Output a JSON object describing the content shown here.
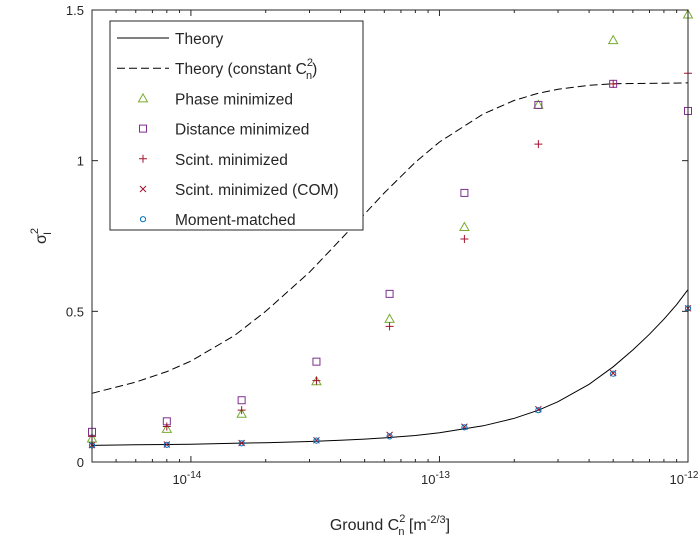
{
  "chart_data": {
    "type": "scatter",
    "x_scale": "log",
    "xlim": [
      4e-15,
      1e-12
    ],
    "ylim": [
      0,
      1.5
    ],
    "grid": false,
    "legend_placement": "top-left",
    "xlabel": {
      "base": "Ground C",
      "sup": "2",
      "sub": "n",
      "unit": "[m",
      "unit_exp": "-2/3",
      "unit_close": "]"
    },
    "ylabel": {
      "base": "σ",
      "sup": "2",
      "sub": "I"
    },
    "y_ticks": [
      {
        "value": 0,
        "label": "0"
      },
      {
        "value": 0.5,
        "label": "0.5"
      },
      {
        "value": 1,
        "label": "1"
      },
      {
        "value": 1.5,
        "label": "1.5"
      }
    ],
    "x_ticks": [
      {
        "value": 1e-14,
        "base": "10",
        "exp": "-14"
      },
      {
        "value": 1e-13,
        "base": "10",
        "exp": "-13"
      },
      {
        "value": 1e-12,
        "base": "10",
        "exp": "-12"
      }
    ],
    "series": [
      {
        "name": "Theory",
        "kind": "line",
        "dash": "solid",
        "color": "#000000",
        "x": [
          4e-15,
          6e-15,
          8e-15,
          1e-14,
          1.5e-14,
          2e-14,
          3e-14,
          4e-14,
          5e-14,
          6e-14,
          8e-14,
          1e-13,
          1.5e-13,
          2e-13,
          2.5e-13,
          3e-13,
          4e-13,
          5e-13,
          6e-13,
          7e-13,
          8e-13,
          9e-13,
          1e-12
        ],
        "y": [
          0.055,
          0.057,
          0.058,
          0.059,
          0.062,
          0.064,
          0.068,
          0.072,
          0.076,
          0.08,
          0.088,
          0.097,
          0.12,
          0.145,
          0.172,
          0.2,
          0.258,
          0.316,
          0.372,
          0.424,
          0.474,
          0.522,
          0.572
        ]
      },
      {
        "name": "Theory (constant C_n^2)",
        "kind": "line",
        "dash": "dashed",
        "color": "#000000",
        "x": [
          4e-15,
          6e-15,
          8e-15,
          1e-14,
          1.5e-14,
          2e-14,
          3e-14,
          4e-14,
          5e-14,
          6e-14,
          8e-14,
          1e-13,
          1.5e-13,
          2e-13,
          2.5e-13,
          3e-13,
          4e-13,
          5e-13,
          6e-13,
          8e-13,
          1e-12
        ],
        "y": [
          0.228,
          0.265,
          0.3,
          0.335,
          0.42,
          0.5,
          0.63,
          0.738,
          0.823,
          0.893,
          0.995,
          1.062,
          1.155,
          1.2,
          1.224,
          1.237,
          1.25,
          1.255,
          1.256,
          1.257,
          1.258
        ]
      },
      {
        "name": "Phase minimized",
        "kind": "marker",
        "marker": "triangle",
        "color": "#77AC30",
        "x": [
          4e-15,
          8e-15,
          1.6e-14,
          3.2e-14,
          6.3e-14,
          1.26e-13,
          2.5e-13,
          5e-13,
          1e-12
        ],
        "y": [
          0.078,
          0.11,
          0.16,
          0.268,
          0.475,
          0.78,
          1.185,
          1.4,
          1.485
        ]
      },
      {
        "name": "Distance minimized",
        "kind": "marker",
        "marker": "square",
        "color": "#7E2F8E",
        "x": [
          4e-15,
          8e-15,
          1.6e-14,
          3.2e-14,
          6.3e-14,
          1.26e-13,
          2.5e-13,
          5e-13,
          1e-12
        ],
        "y": [
          0.1,
          0.135,
          0.205,
          0.333,
          0.558,
          0.893,
          1.185,
          1.255,
          1.165
        ]
      },
      {
        "name": "Scint. minimized",
        "kind": "marker",
        "marker": "plus",
        "color": "#A2142F",
        "x": [
          4e-15,
          8e-15,
          1.6e-14,
          3.2e-14,
          6.3e-14,
          1.26e-13,
          2.5e-13,
          5e-13,
          1e-12
        ],
        "y": [
          0.085,
          0.118,
          0.172,
          0.27,
          0.45,
          0.74,
          1.055,
          1.255,
          1.29
        ]
      },
      {
        "name": "Scint. minimized (COM)",
        "kind": "marker",
        "marker": "cross",
        "color": "#A2142F",
        "x": [
          4e-15,
          8e-15,
          1.6e-14,
          3.2e-14,
          6.3e-14,
          1.26e-13,
          2.5e-13,
          5e-13,
          1e-12
        ],
        "y": [
          0.056,
          0.058,
          0.063,
          0.072,
          0.09,
          0.117,
          0.175,
          0.295,
          0.51
        ]
      },
      {
        "name": "Moment-matched",
        "kind": "marker",
        "marker": "circle",
        "color": "#0072BD",
        "x": [
          4e-15,
          8e-15,
          1.6e-14,
          3.2e-14,
          6.3e-14,
          1.26e-13,
          2.5e-13,
          5e-13,
          1e-12
        ],
        "y": [
          0.055,
          0.057,
          0.062,
          0.071,
          0.085,
          0.115,
          0.172,
          0.293,
          0.51
        ]
      }
    ],
    "legend": [
      {
        "label": "Theory",
        "series": 0
      },
      {
        "label": "Theory (constant C",
        "sup": "2",
        "sub": "n",
        "close": ")",
        "series": 1
      },
      {
        "label": "Phase minimized",
        "series": 2
      },
      {
        "label": "Distance minimized",
        "series": 3
      },
      {
        "label": "Scint. minimized",
        "series": 4
      },
      {
        "label": "Scint. minimized (COM)",
        "series": 5
      },
      {
        "label": "Moment-matched",
        "series": 6
      }
    ]
  }
}
